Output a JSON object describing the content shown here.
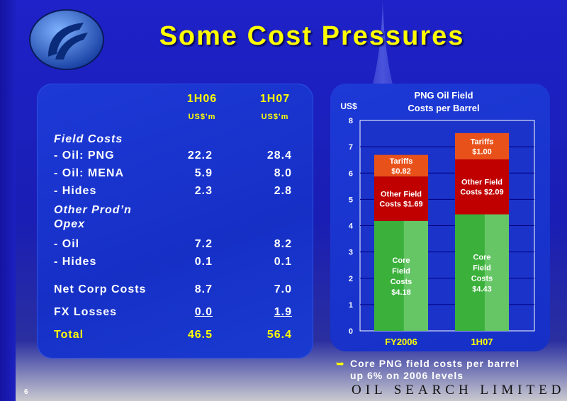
{
  "slide": {
    "title": "Some Cost Pressures",
    "page_number": "6",
    "brand": "OIL SEARCH LIMITED"
  },
  "table": {
    "col1_header": "1H06",
    "col2_header": "1H07",
    "col1_unit": "US$'m",
    "col2_unit": "US$'m",
    "section_field": "Field Costs",
    "section_other_line1": "Other Prod’n",
    "section_other_line2": "Opex",
    "rows": [
      {
        "label": "- Oil: PNG",
        "v1": "22.2",
        "v2": "28.4"
      },
      {
        "label": "- Oil: MENA",
        "v1": "5.9",
        "v2": "8.0"
      },
      {
        "label": "- Hides",
        "v1": "2.3",
        "v2": "2.8"
      },
      {
        "label": "- Oil",
        "v1": "7.2",
        "v2": "8.2"
      },
      {
        "label": "- Hides",
        "v1": "0.1",
        "v2": "0.1"
      },
      {
        "label": "Net Corp Costs",
        "v1": "8.7",
        "v2": "7.0"
      },
      {
        "label": "FX Losses",
        "v1": "0.0",
        "v2": "1.9"
      },
      {
        "label": "Total",
        "v1": "46.5",
        "v2": "56.4"
      }
    ]
  },
  "chart_data": {
    "type": "bar",
    "title": "PNG Oil Field Costs per Barrel",
    "title_line1": "PNG Oil Field",
    "title_line2": "Costs per Barrel",
    "ylabel": "US$",
    "ylim": [
      0,
      8
    ],
    "yticks": [
      "0",
      "1",
      "2",
      "3",
      "4",
      "5",
      "6",
      "7",
      "8"
    ],
    "categories": [
      "FY2006",
      "1H07"
    ],
    "stacked": true,
    "series": [
      {
        "name": "Core Field Costs",
        "values": [
          4.18,
          4.43
        ],
        "color": "#3bb03b",
        "labels": [
          [
            "Core",
            "Field",
            "Costs",
            "$4.18"
          ],
          [
            "Core",
            "Field",
            "Costs",
            "$4.43"
          ]
        ]
      },
      {
        "name": "Other Field Costs",
        "values": [
          1.69,
          2.09
        ],
        "color": "#c00000",
        "labels": [
          [
            "Other Field",
            "Costs $1.69"
          ],
          [
            "Other Field",
            "Costs $2.09"
          ]
        ]
      },
      {
        "name": "Tariffs",
        "values": [
          0.82,
          1.0
        ],
        "color": "#e8521a",
        "labels": [
          [
            "Tariffs",
            "$0.82"
          ],
          [
            "Tariffs",
            "$1.00"
          ]
        ]
      }
    ]
  },
  "bullet": {
    "line1": "Core PNG field costs per barrel",
    "line2": "up 6% on 2006 levels"
  }
}
